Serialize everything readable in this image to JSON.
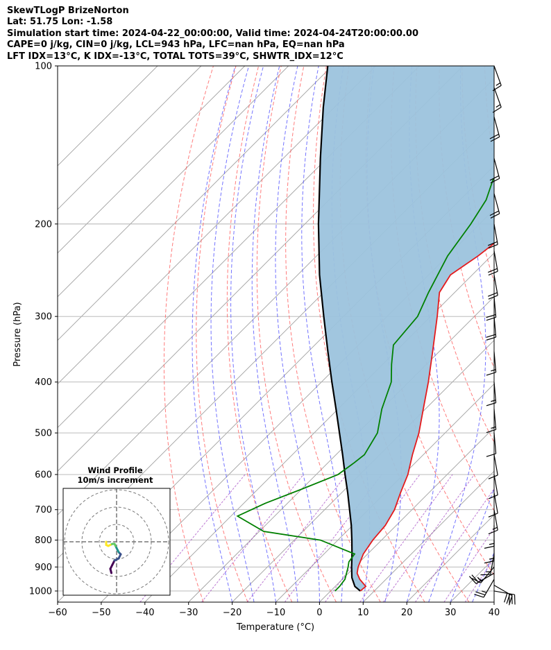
{
  "header": {
    "line1": "SkewTLogP BrizeNorton",
    "line2": "Lat: 51.75   Lon: -1.58",
    "line3": "Simulation start time: 2024-04-22_00:00:00, Valid time: 2024-04-24T20:00:00.00",
    "line4": "CAPE=0 j/kg, CIN=0 j/kg, LCL=943 hPa, LFC=nan hPa, EQ=nan hPa",
    "line5": "LFT IDX=13°C, K IDX=-13°C, TOTAL TOTS=39°C, SHWTR_IDX=12°C"
  },
  "chart_data": {
    "type": "line",
    "subtype": "skew-t log-p",
    "xlabel": "Temperature (°C)",
    "ylabel": "Pressure (hPa)",
    "xlim": [
      -60,
      40
    ],
    "ylim": [
      1050,
      100
    ],
    "yscale": "log",
    "x_ticks": [
      "−60",
      "−50",
      "−40",
      "−30",
      "−20",
      "−10",
      "0",
      "10",
      "20",
      "30",
      "40"
    ],
    "y_ticks": [
      "100",
      "200",
      "300",
      "400",
      "500",
      "600",
      "700",
      "800",
      "900",
      "1000"
    ],
    "colors": {
      "temperature": "#e41a1c",
      "dewpoint": "#008000",
      "parcel": "#000000",
      "fill": "#9cc3dd",
      "dry_adiabats": "#ff5a5a",
      "moist_adiabats": "#5a5aff",
      "mixing_ratio": "#a040c0",
      "isotherms": "#a0a0a0"
    },
    "series": [
      {
        "key": "temperature",
        "points": [
          [
            1000,
            6.8
          ],
          [
            980,
            7.0
          ],
          [
            950,
            4.0
          ],
          [
            925,
            2.0
          ],
          [
            900,
            0.8
          ],
          [
            850,
            -1.0
          ],
          [
            800,
            -2.0
          ],
          [
            750,
            -2.5
          ],
          [
            700,
            -4.0
          ],
          [
            650,
            -6.5
          ],
          [
            600,
            -9.0
          ],
          [
            550,
            -12.5
          ],
          [
            500,
            -16.0
          ],
          [
            450,
            -20.5
          ],
          [
            400,
            -25.5
          ],
          [
            350,
            -31.5
          ],
          [
            300,
            -38.5
          ],
          [
            270,
            -43.5
          ],
          [
            250,
            -45.0
          ],
          [
            230,
            -43.0
          ],
          [
            200,
            -41.0
          ],
          [
            180,
            -40.0
          ],
          [
            160,
            -37.5
          ],
          [
            145,
            -38.0
          ],
          [
            135,
            -39.0
          ],
          [
            120,
            -41.5
          ],
          [
            110,
            -43.5
          ],
          [
            100,
            -46.0
          ]
        ]
      },
      {
        "key": "dewpoint",
        "points": [
          [
            1000,
            1.0
          ],
          [
            980,
            1.0
          ],
          [
            950,
            0.6
          ],
          [
            900,
            -1.5
          ],
          [
            880,
            -2.5
          ],
          [
            850,
            -3.0
          ],
          [
            800,
            -14.0
          ],
          [
            770,
            -29.0
          ],
          [
            720,
            -38.5
          ],
          [
            680,
            -35.0
          ],
          [
            640,
            -30.0
          ],
          [
            600,
            -25.0
          ],
          [
            570,
            -24.0
          ],
          [
            550,
            -23.5
          ],
          [
            500,
            -25.5
          ],
          [
            450,
            -30.0
          ],
          [
            400,
            -34.0
          ],
          [
            370,
            -38.0
          ],
          [
            340,
            -42.0
          ],
          [
            300,
            -43.0
          ],
          [
            270,
            -46.0
          ],
          [
            230,
            -50.0
          ],
          [
            200,
            -52.0
          ],
          [
            180,
            -54.0
          ],
          [
            165,
            -57.0
          ],
          [
            150,
            -56.0
          ],
          [
            130,
            -55.5
          ],
          [
            110,
            -53.5
          ],
          [
            100,
            -52.0
          ]
        ]
      },
      {
        "key": "parcel",
        "points": [
          [
            1000,
            6.8
          ],
          [
            980,
            4.5
          ],
          [
            943,
            1.8
          ],
          [
            900,
            -0.7
          ],
          [
            850,
            -3.6
          ],
          [
            800,
            -6.8
          ],
          [
            750,
            -10.3
          ],
          [
            700,
            -14.3
          ],
          [
            650,
            -18.6
          ],
          [
            600,
            -23.4
          ],
          [
            550,
            -28.5
          ],
          [
            500,
            -34.2
          ],
          [
            450,
            -40.5
          ],
          [
            400,
            -47.6
          ],
          [
            350,
            -55.5
          ],
          [
            300,
            -64.5
          ],
          [
            250,
            -75.0
          ],
          [
            200,
            -86.9
          ],
          [
            150,
            -101.5
          ],
          [
            120,
            -112.5
          ],
          [
            100,
            -121.0
          ]
        ]
      }
    ],
    "wind_barbs": {
      "levels": [
        1000,
        975,
        950,
        925,
        900,
        850,
        800,
        750,
        700,
        650,
        600,
        550,
        500,
        450,
        400,
        350,
        300,
        275,
        250,
        225,
        200,
        175,
        150,
        125,
        110,
        100
      ],
      "speeds_kt": [
        30,
        30,
        25,
        25,
        15,
        15,
        15,
        15,
        15,
        10,
        10,
        10,
        10,
        15,
        15,
        15,
        20,
        20,
        20,
        20,
        20,
        20,
        20,
        20,
        15,
        15
      ],
      "directions_deg": [
        100,
        120,
        210,
        240,
        220,
        190,
        180,
        180,
        170,
        170,
        170,
        170,
        175,
        175,
        175,
        175,
        175,
        175,
        170,
        170,
        170,
        165,
        165,
        165,
        160,
        160
      ]
    },
    "inset": {
      "title": "Wind Profile",
      "subtitle": "10m/s increment",
      "hodograph": [
        [
          -2.5,
          -15
        ],
        [
          -3,
          -13
        ],
        [
          -2,
          -11
        ],
        [
          -1,
          -9
        ],
        [
          1,
          -8
        ],
        [
          2,
          -6
        ],
        [
          1,
          -5
        ],
        [
          0.5,
          -4
        ],
        [
          0,
          -3
        ],
        [
          -0.5,
          -2
        ],
        [
          -1,
          -1
        ],
        [
          -2,
          -1
        ],
        [
          -3,
          -1.5
        ],
        [
          -4,
          -2
        ],
        [
          -5,
          -1.5
        ],
        [
          -5,
          0
        ]
      ],
      "ring_count": 3,
      "colormap": [
        "#440154",
        "#3b528b",
        "#21918c",
        "#5ec962",
        "#fde725"
      ]
    }
  }
}
